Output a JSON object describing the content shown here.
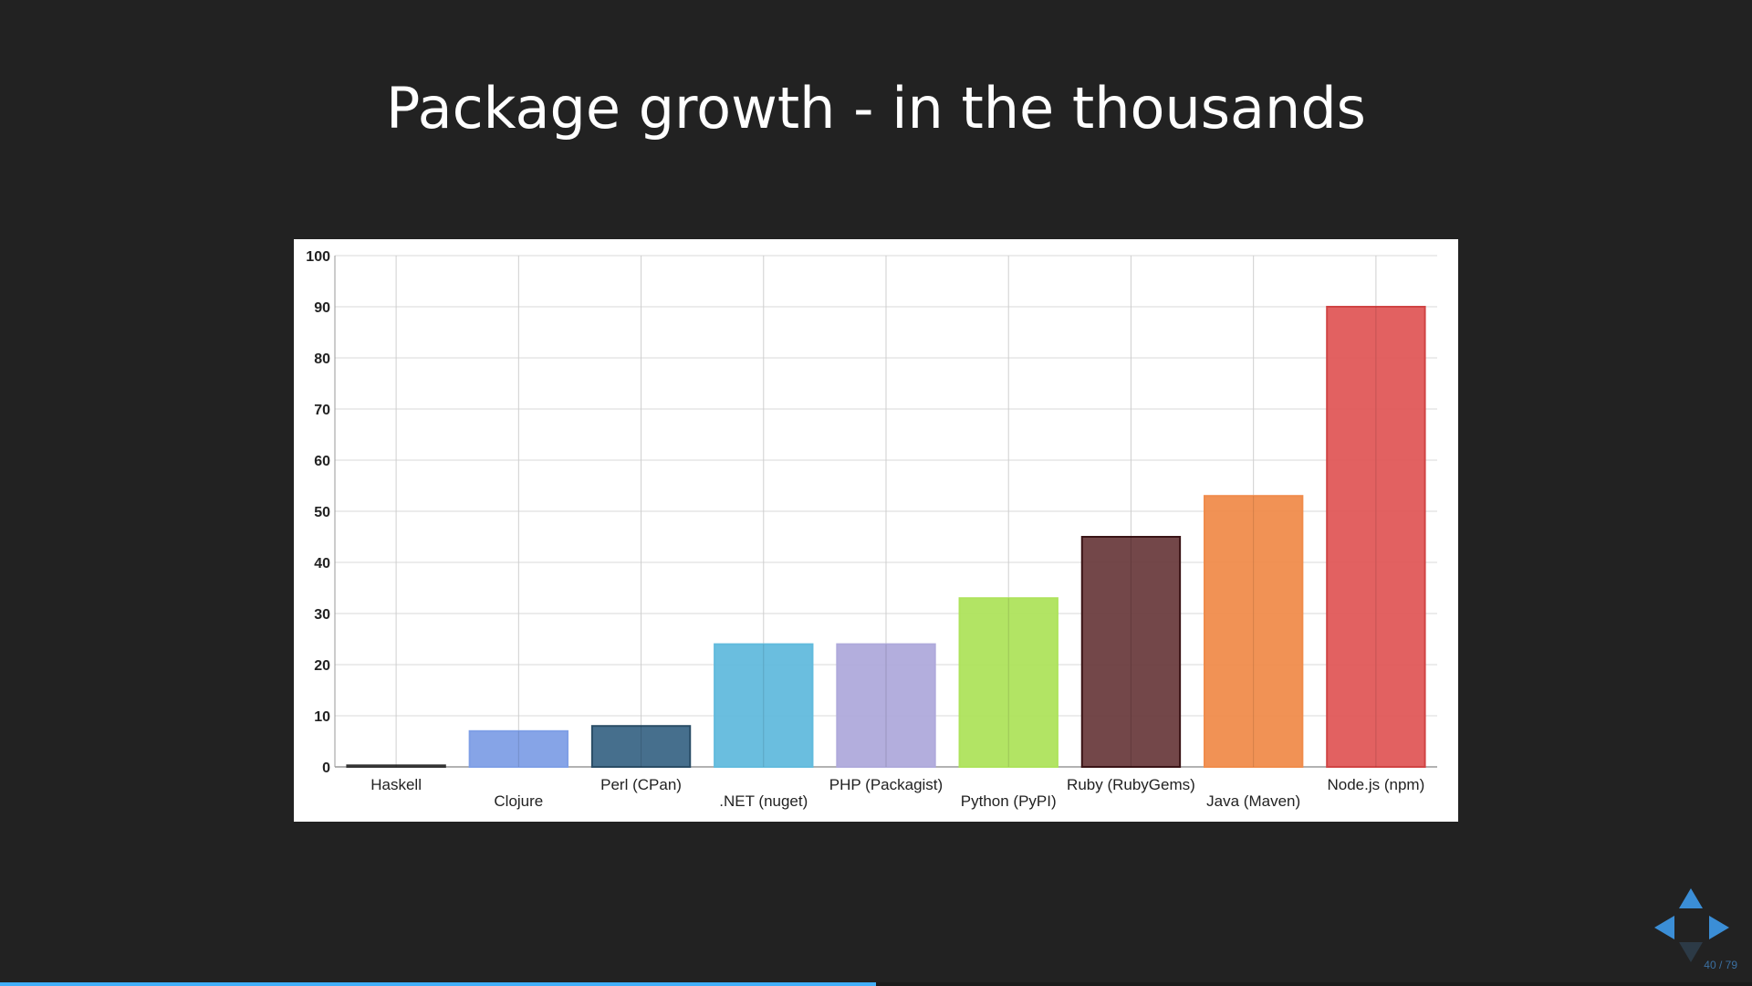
{
  "slide": {
    "title": "Package growth - in the thousands",
    "number_text": "40 / 79",
    "current": 40,
    "total": 79,
    "progress_fraction": 0.5
  },
  "colors": {
    "background": "#222222",
    "accent": "#3b8ed6",
    "progress": "#42affa"
  },
  "controls": {
    "up_icon": "arrow-up-icon",
    "left_icon": "arrow-left-icon",
    "right_icon": "arrow-right-icon",
    "down_icon": "arrow-down-icon"
  },
  "chart_data": {
    "type": "bar",
    "title": "",
    "xlabel": "",
    "ylabel": "",
    "ylim": [
      0,
      100
    ],
    "yticks": [
      0,
      10,
      20,
      30,
      40,
      50,
      60,
      70,
      80,
      90,
      100
    ],
    "grid": true,
    "legend": "none",
    "categories": [
      "Haskell",
      "Clojure",
      "Perl (CPan)",
      ".NET (nuget)",
      "PHP (Packagist)",
      "Python (PyPI)",
      "Ruby (RubyGems)",
      "Java (Maven)",
      "Node.js (npm)"
    ],
    "values": [
      0.3,
      7,
      8,
      24,
      24,
      33,
      45,
      53,
      90
    ],
    "bar_colors": [
      "#555555",
      "#7f9fe6",
      "#3c6787",
      "#62bbdd",
      "#afaadb",
      "#aee35c",
      "#6b3d3f",
      "#f08c4c",
      "#e05858"
    ],
    "bar_edge_colors": [
      "#333333",
      "#7f9fe6",
      "#2a4d66",
      "#62bbdd",
      "#afaadb",
      "#aee35c",
      "#3a1416",
      "#f08c4c",
      "#d04444"
    ]
  }
}
